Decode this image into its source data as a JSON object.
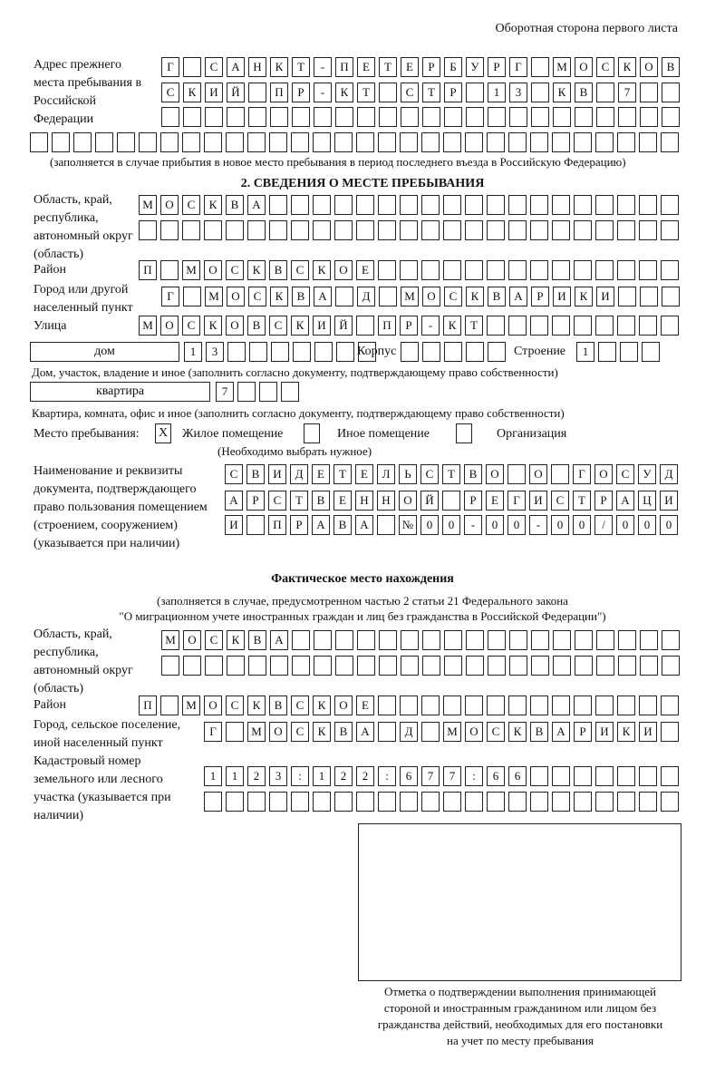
{
  "header": {
    "title": "Оборотная сторона первого листа"
  },
  "previous_address": {
    "label": "Адрес прежнего места пребывания в Российской Федерации",
    "rows": [
      [
        "Г",
        "",
        "С",
        "А",
        "Н",
        "К",
        "Т",
        "-",
        "П",
        "Е",
        "Т",
        "Е",
        "Р",
        "Б",
        "У",
        "Р",
        "Г",
        "",
        "М",
        "О",
        "С",
        "К",
        "О",
        "В"
      ],
      [
        "С",
        "К",
        "И",
        "Й",
        "",
        "П",
        "Р",
        "-",
        "К",
        "Т",
        "",
        "С",
        "Т",
        "Р",
        "",
        "1",
        "3",
        "",
        "К",
        "В",
        "",
        "7",
        "",
        ""
      ],
      [
        "",
        "",
        "",
        "",
        "",
        "",
        "",
        "",
        "",
        "",
        "",
        "",
        "",
        "",
        "",
        "",
        "",
        "",
        "",
        "",
        "",
        "",
        "",
        ""
      ],
      [
        "",
        "",
        "",
        "",
        "",
        "",
        "",
        "",
        "",
        "",
        "",
        "",
        "",
        "",
        "",
        "",
        "",
        "",
        "",
        "",
        "",
        "",
        "",
        "",
        "",
        "",
        "",
        "",
        "",
        ""
      ]
    ],
    "note": "(заполняется в случае прибытия в новое место пребывания в период последнего въезда в Российскую Федерацию)"
  },
  "section2": {
    "title": "2. СВЕДЕНИЯ О МЕСТЕ ПРЕБЫВАНИЯ",
    "region_label": "Область, край, республика, автономный округ (область)",
    "region_rows": [
      [
        "М",
        "О",
        "С",
        "К",
        "В",
        "А",
        "",
        "",
        "",
        "",
        "",
        "",
        "",
        "",
        "",
        "",
        "",
        "",
        "",
        "",
        "",
        "",
        "",
        "",
        ""
      ],
      [
        "",
        "",
        "",
        "",
        "",
        "",
        "",
        "",
        "",
        "",
        "",
        "",
        "",
        "",
        "",
        "",
        "",
        "",
        "",
        "",
        "",
        "",
        "",
        "",
        ""
      ]
    ],
    "district_label": "Район",
    "district": [
      "П",
      "",
      "М",
      "О",
      "С",
      "К",
      "В",
      "С",
      "К",
      "О",
      "Е",
      "",
      "",
      "",
      "",
      "",
      "",
      "",
      "",
      "",
      "",
      "",
      "",
      "",
      ""
    ],
    "city_label": "Город или другой населенный пункт",
    "city": [
      "Г",
      "",
      "М",
      "О",
      "С",
      "К",
      "В",
      "А",
      "",
      "Д",
      "",
      "М",
      "О",
      "С",
      "К",
      "В",
      "А",
      "Р",
      "И",
      "К",
      "И",
      "",
      "",
      ""
    ],
    "street_label": "Улица",
    "street": [
      "М",
      "О",
      "С",
      "К",
      "О",
      "В",
      "С",
      "К",
      "И",
      "Й",
      "",
      "П",
      "Р",
      "-",
      "К",
      "Т",
      "",
      "",
      "",
      "",
      "",
      "",
      "",
      "",
      ""
    ],
    "house_type": "дом",
    "house": [
      "1",
      "3",
      "",
      "",
      "",
      "",
      "",
      "",
      ""
    ],
    "korpus_label": "Корпус",
    "korpus": [
      "",
      "",
      "",
      "",
      ""
    ],
    "building_label": "Строение",
    "building": [
      "1",
      "",
      "",
      ""
    ],
    "house_note": "Дом, участок, владение и иное (заполнить согласно документу, подтверждающему право собственности)",
    "flat_type": "квартира",
    "flat": [
      "7",
      "",
      "",
      ""
    ],
    "flat_note": "Квартира, комната, офис и иное (заполнить согласно документу, подтверждающему право собственности)",
    "stay_place_label": "Место пребывания:",
    "options": [
      {
        "label": "Жилое помещение",
        "mark": "X"
      },
      {
        "label": "Иное помещение",
        "mark": ""
      },
      {
        "label": "Организация",
        "mark": ""
      }
    ],
    "choose_note": "(Необходимо выбрать нужное)",
    "doc_label": "Наименование и реквизиты документа, подтверждающего право пользования помещением (строением, сооружением) (указывается при наличии)",
    "doc_rows": [
      [
        "С",
        "В",
        "И",
        "Д",
        "Е",
        "Т",
        "Е",
        "Л",
        "Ь",
        "С",
        "Т",
        "В",
        "О",
        "",
        "О",
        "",
        "Г",
        "О",
        "С",
        "У",
        "Д"
      ],
      [
        "А",
        "Р",
        "С",
        "Т",
        "В",
        "Е",
        "Н",
        "Н",
        "О",
        "Й",
        "",
        "Р",
        "Е",
        "Г",
        "И",
        "С",
        "Т",
        "Р",
        "А",
        "Ц",
        "И"
      ],
      [
        "И",
        "",
        "П",
        "Р",
        "А",
        "В",
        "А",
        "",
        "№",
        "0",
        "0",
        "-",
        "0",
        "0",
        "-",
        "0",
        "0",
        "/",
        "0",
        "0",
        "0"
      ]
    ]
  },
  "actual": {
    "title": "Фактическое место нахождения",
    "note1": "(заполняется в случае, предусмотренном частью 2 статьи 21 Федерального закона",
    "note2": "\"О миграционном учете иностранных граждан и лиц без гражданства в Российской Федерации\")",
    "region_label": "Область, край, республика, автономный округ (область)",
    "region_rows": [
      [
        "М",
        "О",
        "С",
        "К",
        "В",
        "А",
        "",
        "",
        "",
        "",
        "",
        "",
        "",
        "",
        "",
        "",
        "",
        "",
        "",
        "",
        "",
        "",
        "",
        ""
      ],
      [
        "",
        "",
        "",
        "",
        "",
        "",
        "",
        "",
        "",
        "",
        "",
        "",
        "",
        "",
        "",
        "",
        "",
        "",
        "",
        "",
        "",
        "",
        "",
        ""
      ]
    ],
    "district_label": "Район",
    "district": [
      "П",
      "",
      "М",
      "О",
      "С",
      "К",
      "В",
      "С",
      "К",
      "О",
      "Е",
      "",
      "",
      "",
      "",
      "",
      "",
      "",
      "",
      "",
      "",
      "",
      "",
      "",
      ""
    ],
    "city_label": "Город, сельское поселение, иной населенный пункт",
    "city": [
      "Г",
      "",
      "М",
      "О",
      "С",
      "К",
      "В",
      "А",
      "",
      "Д",
      "",
      "М",
      "О",
      "С",
      "К",
      "В",
      "А",
      "Р",
      "И",
      "К",
      "И",
      ""
    ],
    "cadastral_label": "Кадастровый номер земельного или лесного участка (указывается при наличии)",
    "cadastral_rows": [
      [
        "1",
        "1",
        "2",
        "3",
        ":",
        "1",
        "2",
        "2",
        ":",
        "6",
        "7",
        "7",
        ":",
        "6",
        "6",
        "",
        "",
        "",
        "",
        "",
        "",
        ""
      ],
      [
        "",
        "",
        "",
        "",
        "",
        "",
        "",
        "",
        "",
        "",
        "",
        "",
        "",
        "",
        "",
        "",
        "",
        "",
        "",
        "",
        "",
        ""
      ]
    ]
  },
  "confirmation": {
    "caption": [
      "Отметка о подтверждении выполнения принимающей",
      "стороной и иностранным гражданином или лицом без",
      "гражданства действий, необходимых для его постановки",
      "на учет по месту пребывания"
    ]
  }
}
